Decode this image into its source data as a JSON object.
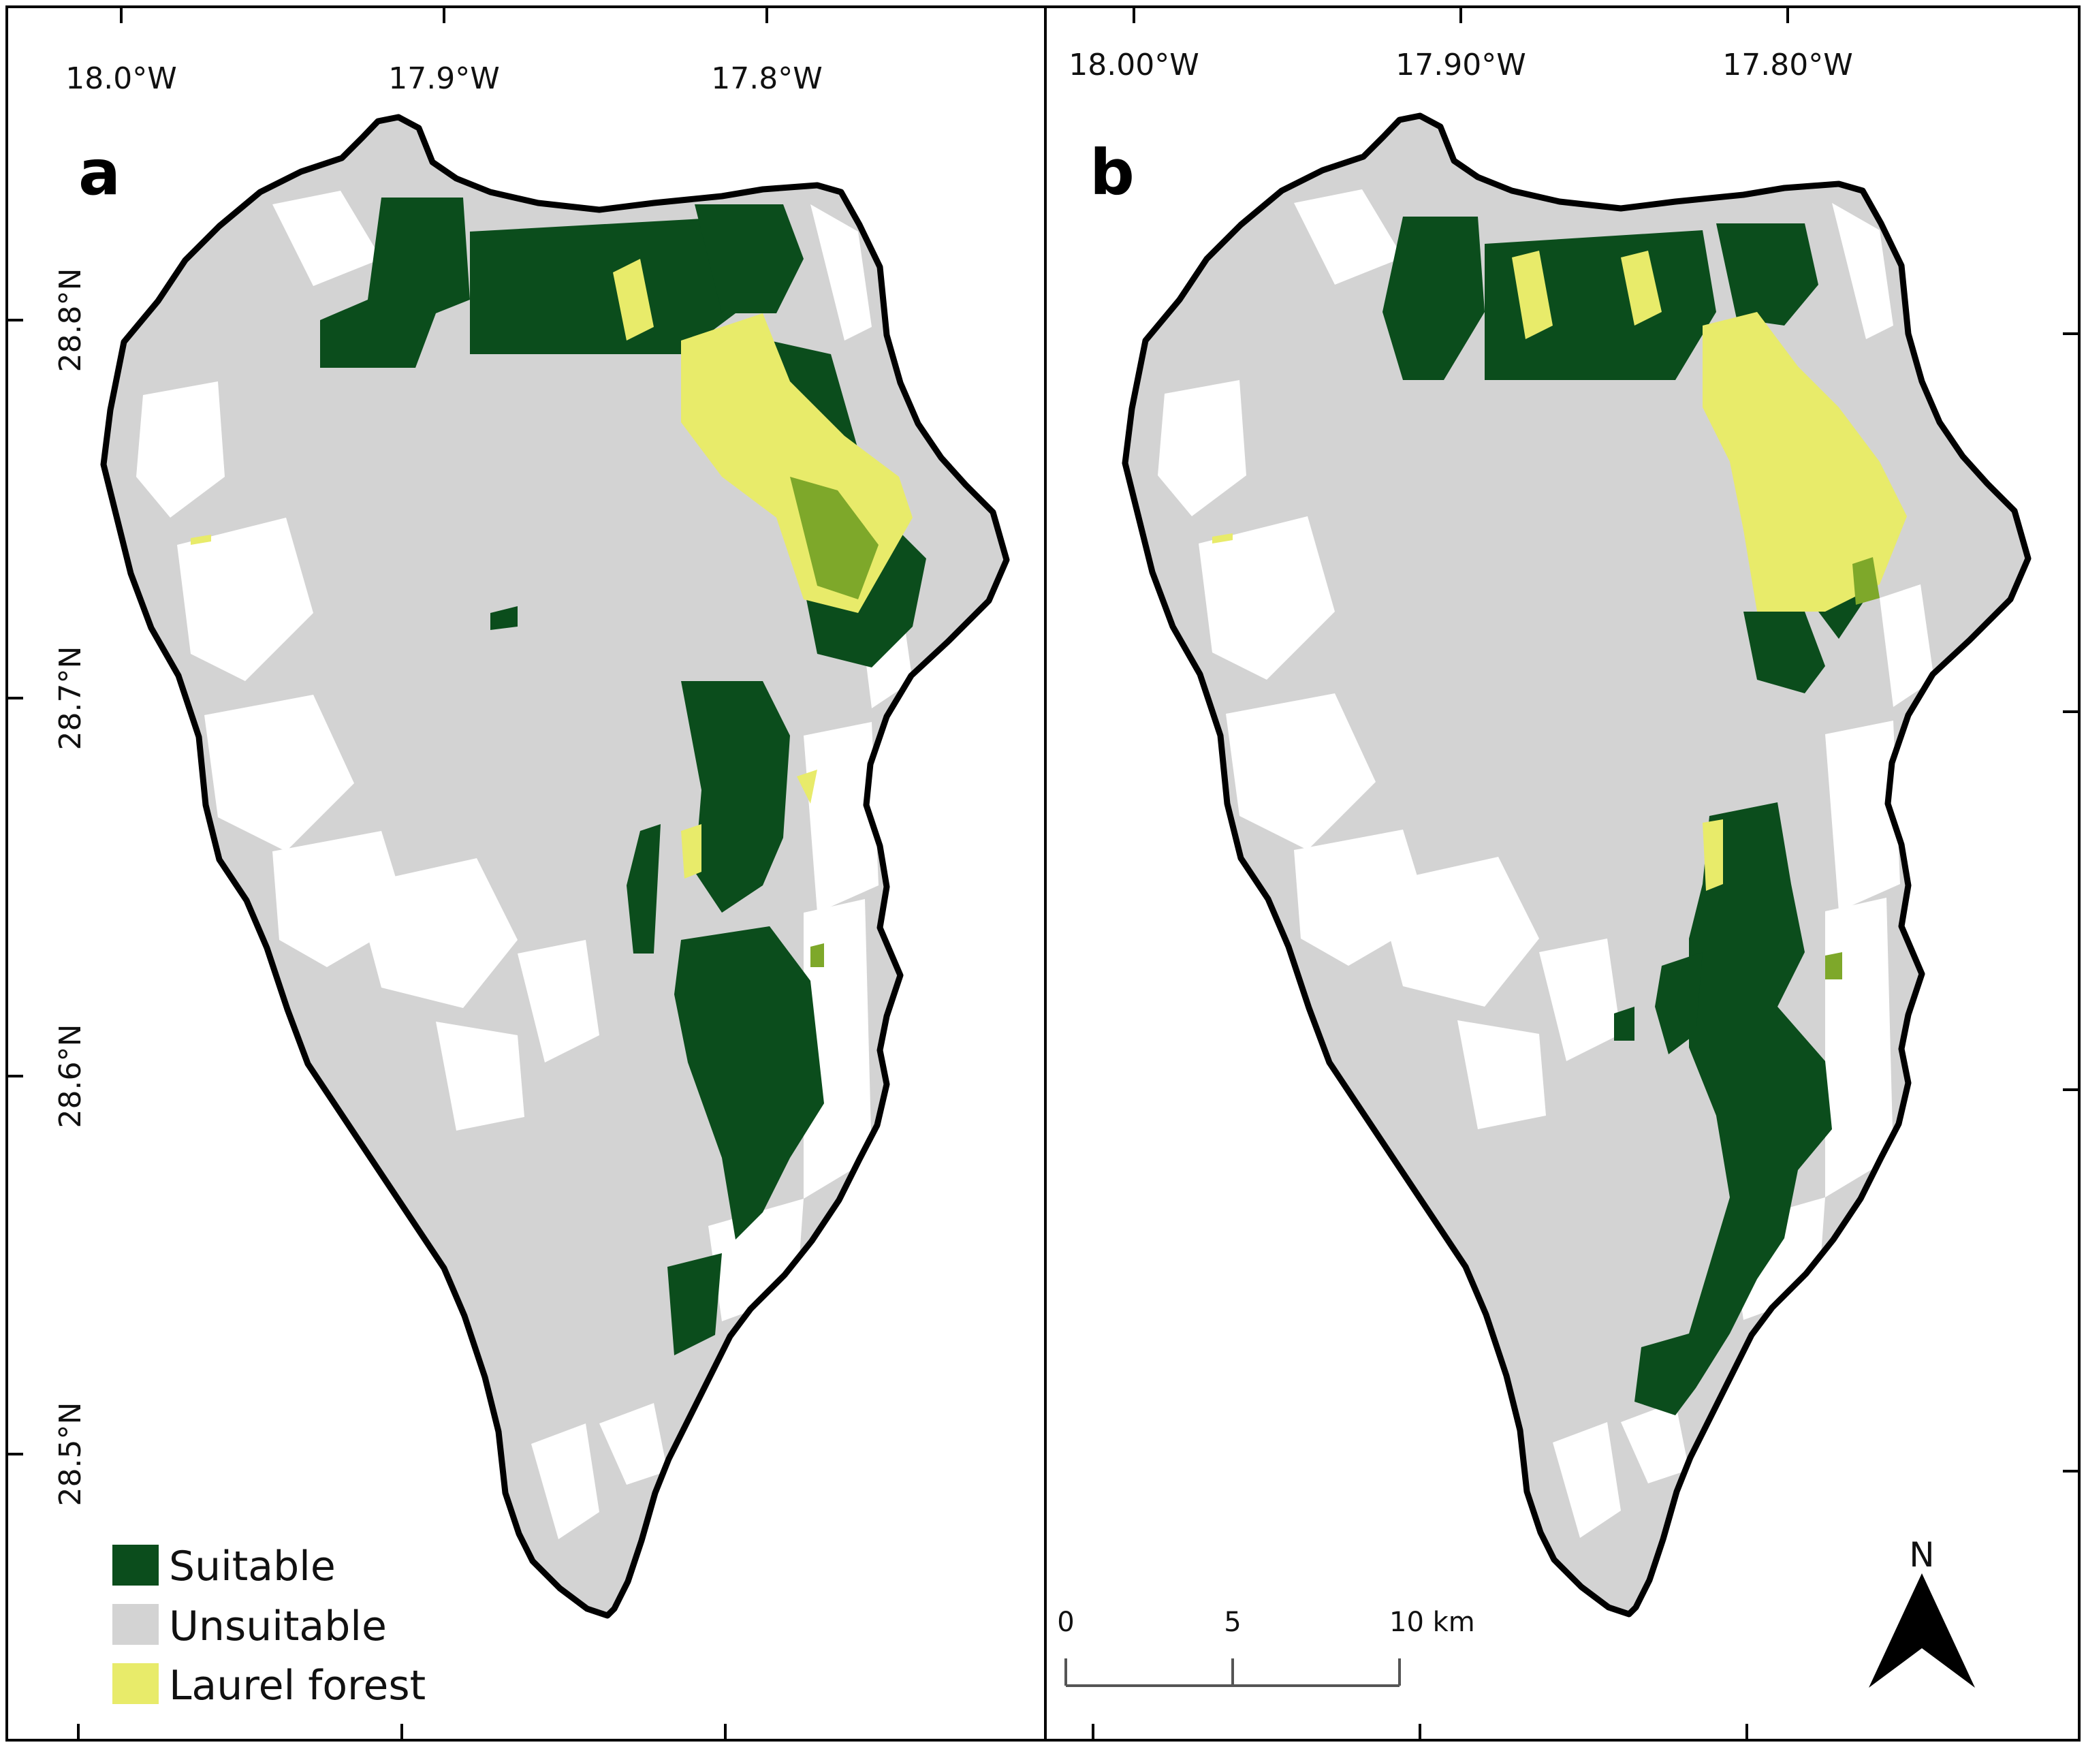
{
  "colors": {
    "suitable": "#0b4d1c",
    "unsuitable": "#d3d3d3",
    "laurel_forest": "#e8eb6a",
    "overlap": "#7ea82a",
    "outline": "#000000",
    "background": "#ffffff"
  },
  "panel_a": {
    "letter": "a",
    "lon_ticks": [
      "18.0°W",
      "17.9°W",
      "17.8°W"
    ],
    "lat_ticks": [
      "28.8°N",
      "28.7°N",
      "28.6°N",
      "28.5°N"
    ]
  },
  "panel_b": {
    "letter": "b",
    "lon_ticks": [
      "18.00°W",
      "17.90°W",
      "17.80°W"
    ]
  },
  "legend": {
    "items": [
      {
        "label": "Suitable",
        "color": "#0b4d1c"
      },
      {
        "label": "Unsuitable",
        "color": "#d3d3d3"
      },
      {
        "label": "Laurel forest",
        "color": "#e8eb6a"
      }
    ]
  },
  "scale_bar": {
    "labels": [
      "0",
      "5",
      "10 km"
    ]
  },
  "north_arrow": {
    "label": "N",
    "icon": "north-arrow-icon"
  }
}
